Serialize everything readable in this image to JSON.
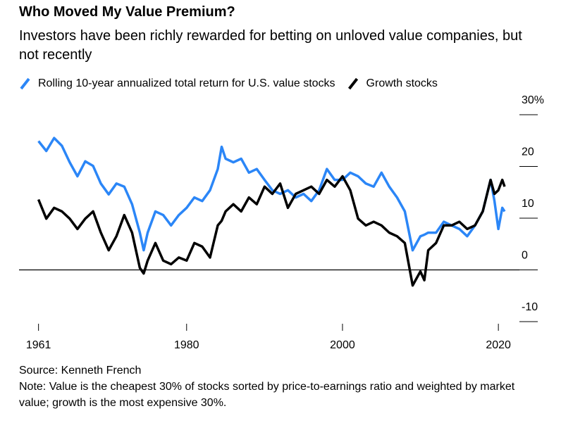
{
  "chart_data": {
    "type": "line",
    "title": "Who Moved My Value Premium?",
    "subtitle": "Investors have been richly rewarded for betting on unloved value companies, but not recently",
    "source": "Source: Kenneth French",
    "note": "Note: Value is the cheapest 30% of stocks sorted by price-to-earnings ratio and weighted by market value; growth is the most expensive 30%.",
    "x": [
      1961,
      1962,
      1963,
      1964,
      1965,
      1966,
      1967,
      1968,
      1969,
      1970,
      1971,
      1972,
      1973,
      1974,
      1974.5,
      1975,
      1976,
      1977,
      1978,
      1979,
      1980,
      1981,
      1982,
      1983,
      1984,
      1984.5,
      1985,
      1986,
      1987,
      1988,
      1989,
      1990,
      1991,
      1992,
      1993,
      1994,
      1995,
      1996,
      1997,
      1998,
      1999,
      2000,
      2001,
      2002,
      2003,
      2004,
      2005,
      2006,
      2007,
      2008,
      2009,
      2010,
      2010.5,
      2011,
      2012,
      2013,
      2014,
      2015,
      2016,
      2017,
      2018,
      2019,
      2019.5,
      2020,
      2020.5,
      2020.8
    ],
    "series": [
      {
        "name": "Rolling 10-year annualized total return for U.S. value stocks",
        "color": "#2b86f7",
        "values": [
          24.9,
          23,
          25.5,
          24,
          20.8,
          18.1,
          21,
          20.1,
          16.7,
          14.6,
          16.7,
          16.1,
          12.7,
          7.2,
          3.8,
          7.2,
          11.3,
          10.6,
          8.6,
          10.6,
          12,
          14,
          13.3,
          15.4,
          19.5,
          23.8,
          21.5,
          20.8,
          21.5,
          18.8,
          19.5,
          17.4,
          15.4,
          14.7,
          15.4,
          14,
          14.7,
          13.3,
          15.4,
          19.5,
          17.4,
          17.4,
          18.8,
          18.1,
          16.7,
          16.1,
          18.8,
          16.1,
          14,
          11.3,
          3.8,
          6.5,
          6.8,
          7.2,
          7.2,
          9.3,
          8.6,
          7.9,
          6.5,
          8.6,
          11.3,
          17.4,
          13.3,
          7.9,
          12,
          11.3
        ]
      },
      {
        "name": "Growth stocks",
        "color": "#000000",
        "values": [
          13.6,
          9.9,
          12,
          11.3,
          9.9,
          7.9,
          9.9,
          11.3,
          7.2,
          3.8,
          6.5,
          10.6,
          7.2,
          0.4,
          -0.7,
          1.8,
          5.2,
          1.8,
          1.1,
          2.4,
          1.8,
          5.2,
          4.5,
          2.4,
          8.6,
          9.5,
          11.3,
          12.7,
          11.3,
          14,
          12.7,
          16.1,
          14.7,
          16.7,
          12,
          14.7,
          15.4,
          16.1,
          14.7,
          17.4,
          16.1,
          18.1,
          15.4,
          9.9,
          8.6,
          9.3,
          8.6,
          7.2,
          6.5,
          5.2,
          -3,
          -0.3,
          -2,
          3.8,
          5.2,
          8.6,
          8.6,
          9.3,
          7.9,
          8.6,
          11.3,
          17.4,
          14.7,
          15.4,
          17.4,
          16.1
        ]
      }
    ],
    "xlim": [
      1958.5,
      2022.7
    ],
    "xticks": [
      1961,
      1980,
      2000,
      2020
    ],
    "ylim": [
      -10,
      30
    ],
    "yticks": [
      {
        "value": 30,
        "label": "30%"
      },
      20,
      10,
      0,
      -10
    ]
  }
}
